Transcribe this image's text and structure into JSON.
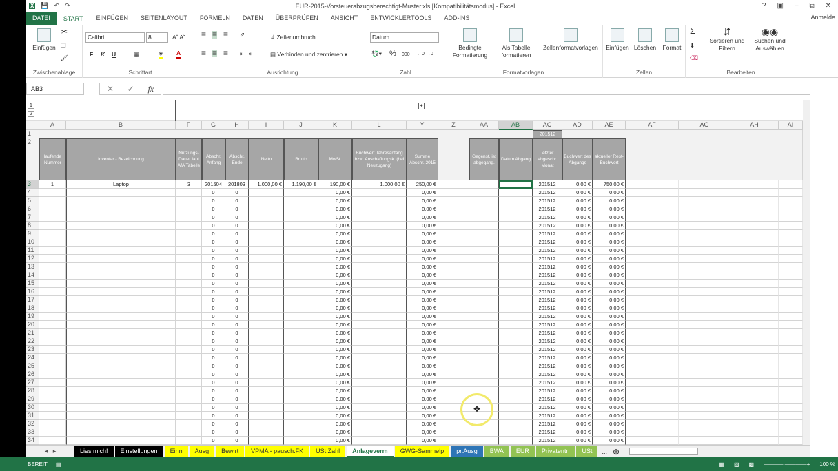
{
  "window": {
    "title": "EÜR-2015-Vorsteuerabzugsberechtigt-Muster.xls  [Kompatibilitätsmodus] - Excel",
    "help": "?",
    "signin": "Anmelde"
  },
  "tabs": [
    "DATEI",
    "START",
    "EINFÜGEN",
    "SEITENLAYOUT",
    "FORMELN",
    "DATEN",
    "ÜBERPRÜFEN",
    "ANSICHT",
    "ENTWICKLERTOOLS",
    "ADD-INS"
  ],
  "ribbon": {
    "clipboard": {
      "paste": "Einfügen",
      "label": "Zwischenablage"
    },
    "font": {
      "name": "Calibri",
      "size": "8",
      "bold": "F",
      "italic": "K",
      "underline": "U",
      "label": "Schriftart"
    },
    "alignment": {
      "wrap": "Zeilenumbruch",
      "merge": "Verbinden und zentrieren",
      "label": "Ausrichtung"
    },
    "number": {
      "format": "Datum",
      "percent": "%",
      "thousands": "000",
      "label": "Zahl"
    },
    "styles": {
      "conditional": "Bedingte Formatierung",
      "table": "Als Tabelle formatieren",
      "cellstyles": "Zellenformatvorlagen",
      "label": "Formatvorlagen"
    },
    "cells": {
      "insert": "Einfügen",
      "delete": "Löschen",
      "format": "Format",
      "label": "Zellen"
    },
    "editing": {
      "sort": "Sortieren und Filtern",
      "find": "Suchen und Auswählen",
      "label": "Bearbeiten"
    }
  },
  "formula": {
    "namebox": "AB3",
    "fx": "fx",
    "value": ""
  },
  "columns": [
    "A",
    "B",
    "F",
    "G",
    "H",
    "I",
    "J",
    "K",
    "L",
    "Y",
    "Z",
    "AA",
    "AB",
    "AC",
    "AD",
    "AE",
    "AF",
    "AG",
    "AH",
    "AI"
  ],
  "row1": {
    "AC": "201512"
  },
  "headers": {
    "A": "laufende Nummer",
    "B": "Inventar - Bezeichnung",
    "F": "Nutzungs-Dauer laut AfA Tabelle",
    "G": "Abschr. Anfang",
    "H": "Abschr. Ende",
    "I": "Netto",
    "J": "Brutto",
    "K": "MwSt.",
    "L": "Buchwert Jahresanfang bzw. Anschaffungsk. (bei Neuzugang)",
    "Y": "Summe Abschr. 2015",
    "AA": "Gegenst. ist abgegang.",
    "AB": "Datum Abgang",
    "AC": "letzter abgeschr. Monat",
    "AD": "Buchwert des Abgangs",
    "AE": "aktueller Rest-Buchwert"
  },
  "rows": [
    {
      "n": 3,
      "A": "1",
      "B": "Laptop",
      "F": "3",
      "G": "201504",
      "H": "201803",
      "I": "1.000,00 €",
      "J": "1.190,00 €",
      "K": "190,00 €",
      "L": "1.000,00 €",
      "Y": "250,00 €",
      "AC": "201512",
      "AD": "0,00 €",
      "AE": "750,00 €"
    },
    {
      "n": 4,
      "G": "0",
      "H": "0",
      "K": "0,00 €",
      "Y": "0,00 €",
      "AC": "201512",
      "AD": "0,00 €",
      "AE": "0,00 €"
    },
    {
      "n": 5,
      "G": "0",
      "H": "0",
      "K": "0,00 €",
      "Y": "0,00 €",
      "AC": "201512",
      "AD": "0,00 €",
      "AE": "0,00 €"
    },
    {
      "n": 6,
      "G": "0",
      "H": "0",
      "K": "0,00 €",
      "Y": "0,00 €",
      "AC": "201512",
      "AD": "0,00 €",
      "AE": "0,00 €"
    },
    {
      "n": 7,
      "G": "0",
      "H": "0",
      "K": "0,00 €",
      "Y": "0,00 €",
      "AC": "201512",
      "AD": "0,00 €",
      "AE": "0,00 €"
    },
    {
      "n": 8,
      "G": "0",
      "H": "0",
      "K": "0,00 €",
      "Y": "0,00 €",
      "AC": "201512",
      "AD": "0,00 €",
      "AE": "0,00 €"
    },
    {
      "n": 9,
      "G": "0",
      "H": "0",
      "K": "0,00 €",
      "Y": "0,00 €",
      "AC": "201512",
      "AD": "0,00 €",
      "AE": "0,00 €"
    },
    {
      "n": 10,
      "G": "0",
      "H": "0",
      "K": "0,00 €",
      "Y": "0,00 €",
      "AC": "201512",
      "AD": "0,00 €",
      "AE": "0,00 €"
    },
    {
      "n": 11,
      "G": "0",
      "H": "0",
      "K": "0,00 €",
      "Y": "0,00 €",
      "AC": "201512",
      "AD": "0,00 €",
      "AE": "0,00 €"
    },
    {
      "n": 12,
      "G": "0",
      "H": "0",
      "K": "0,00 €",
      "Y": "0,00 €",
      "AC": "201512",
      "AD": "0,00 €",
      "AE": "0,00 €"
    },
    {
      "n": 13,
      "G": "0",
      "H": "0",
      "K": "0,00 €",
      "Y": "0,00 €",
      "AC": "201512",
      "AD": "0,00 €",
      "AE": "0,00 €"
    },
    {
      "n": 14,
      "G": "0",
      "H": "0",
      "K": "0,00 €",
      "Y": "0,00 €",
      "AC": "201512",
      "AD": "0,00 €",
      "AE": "0,00 €"
    },
    {
      "n": 15,
      "G": "0",
      "H": "0",
      "K": "0,00 €",
      "Y": "0,00 €",
      "AC": "201512",
      "AD": "0,00 €",
      "AE": "0,00 €"
    },
    {
      "n": 16,
      "G": "0",
      "H": "0",
      "K": "0,00 €",
      "Y": "0,00 €",
      "AC": "201512",
      "AD": "0,00 €",
      "AE": "0,00 €"
    },
    {
      "n": 17,
      "G": "0",
      "H": "0",
      "K": "0,00 €",
      "Y": "0,00 €",
      "AC": "201512",
      "AD": "0,00 €",
      "AE": "0,00 €"
    },
    {
      "n": 18,
      "G": "0",
      "H": "0",
      "K": "0,00 €",
      "Y": "0,00 €",
      "AC": "201512",
      "AD": "0,00 €",
      "AE": "0,00 €"
    },
    {
      "n": 19,
      "G": "0",
      "H": "0",
      "K": "0,00 €",
      "Y": "0,00 €",
      "AC": "201512",
      "AD": "0,00 €",
      "AE": "0,00 €"
    },
    {
      "n": 20,
      "G": "0",
      "H": "0",
      "K": "0,00 €",
      "Y": "0,00 €",
      "AC": "201512",
      "AD": "0,00 €",
      "AE": "0,00 €"
    },
    {
      "n": 21,
      "G": "0",
      "H": "0",
      "K": "0,00 €",
      "Y": "0,00 €",
      "AC": "201512",
      "AD": "0,00 €",
      "AE": "0,00 €"
    },
    {
      "n": 22,
      "G": "0",
      "H": "0",
      "K": "0,00 €",
      "Y": "0,00 €",
      "AC": "201512",
      "AD": "0,00 €",
      "AE": "0,00 €"
    },
    {
      "n": 23,
      "G": "0",
      "H": "0",
      "K": "0,00 €",
      "Y": "0,00 €",
      "AC": "201512",
      "AD": "0,00 €",
      "AE": "0,00 €"
    },
    {
      "n": 24,
      "G": "0",
      "H": "0",
      "K": "0,00 €",
      "Y": "0,00 €",
      "AC": "201512",
      "AD": "0,00 €",
      "AE": "0,00 €"
    },
    {
      "n": 25,
      "G": "0",
      "H": "0",
      "K": "0,00 €",
      "Y": "0,00 €",
      "AC": "201512",
      "AD": "0,00 €",
      "AE": "0,00 €"
    },
    {
      "n": 26,
      "G": "0",
      "H": "0",
      "K": "0,00 €",
      "Y": "0,00 €",
      "AC": "201512",
      "AD": "0,00 €",
      "AE": "0,00 €"
    },
    {
      "n": 27,
      "G": "0",
      "H": "0",
      "K": "0,00 €",
      "Y": "0,00 €",
      "AC": "201512",
      "AD": "0,00 €",
      "AE": "0,00 €"
    },
    {
      "n": 28,
      "G": "0",
      "H": "0",
      "K": "0,00 €",
      "Y": "0,00 €",
      "AC": "201512",
      "AD": "0,00 €",
      "AE": "0,00 €"
    },
    {
      "n": 29,
      "G": "0",
      "H": "0",
      "K": "0,00 €",
      "Y": "0,00 €",
      "AC": "201512",
      "AD": "0,00 €",
      "AE": "0,00 €"
    },
    {
      "n": 30,
      "G": "0",
      "H": "0",
      "K": "0,00 €",
      "Y": "0,00 €",
      "AC": "201512",
      "AD": "0,00 €",
      "AE": "0,00 €"
    },
    {
      "n": 31,
      "G": "0",
      "H": "0",
      "K": "0,00 €",
      "Y": "0,00 €",
      "AC": "201512",
      "AD": "0,00 €",
      "AE": "0,00 €"
    },
    {
      "n": 32,
      "G": "0",
      "H": "0",
      "K": "0,00 €",
      "Y": "0,00 €",
      "AC": "201512",
      "AD": "0,00 €",
      "AE": "0,00 €"
    },
    {
      "n": 33,
      "G": "0",
      "H": "0",
      "K": "0,00 €",
      "Y": "0,00 €",
      "AC": "201512",
      "AD": "0,00 €",
      "AE": "0,00 €"
    },
    {
      "n": 34,
      "G": "0",
      "H": "0",
      "K": "0,00 €",
      "Y": "0,00 €",
      "AC": "201512",
      "AD": "0,00 €",
      "AE": "0,00 €"
    }
  ],
  "sheets": [
    {
      "label": "Lies mich!",
      "bg": "#000000",
      "fg": "#ffffff"
    },
    {
      "label": "Einstellungen",
      "bg": "#000000",
      "fg": "#ffffff"
    },
    {
      "label": "Einn",
      "bg": "#ffff00",
      "fg": "#333333"
    },
    {
      "label": "Ausg",
      "bg": "#ffff00",
      "fg": "#333333"
    },
    {
      "label": "Bewirt",
      "bg": "#ffff00",
      "fg": "#333333"
    },
    {
      "label": "VPMA - pausch.FK",
      "bg": "#ffff00",
      "fg": "#333333"
    },
    {
      "label": "USt.Zahl",
      "bg": "#ffff00",
      "fg": "#333333"
    },
    {
      "label": "Anlageverm",
      "bg": "#ffffff",
      "fg": "#217346",
      "active": true
    },
    {
      "label": "GWG-Sammelp",
      "bg": "#ffff00",
      "fg": "#333333"
    },
    {
      "label": "pr.Ausg",
      "bg": "#2e75b6",
      "fg": "#ffffff"
    },
    {
      "label": "BWA",
      "bg": "#92c353",
      "fg": "#ffffff"
    },
    {
      "label": "EÜR",
      "bg": "#92c353",
      "fg": "#ffffff"
    },
    {
      "label": "Privatentn",
      "bg": "#92c353",
      "fg": "#ffffff"
    },
    {
      "label": "USt",
      "bg": "#92c353",
      "fg": "#ffffff"
    }
  ],
  "sheet_more": "...",
  "status": {
    "ready": "BEREIT",
    "zoom": "100 %"
  },
  "colors": {
    "accent": "#217346",
    "header_gray": "#a6a6a6"
  }
}
